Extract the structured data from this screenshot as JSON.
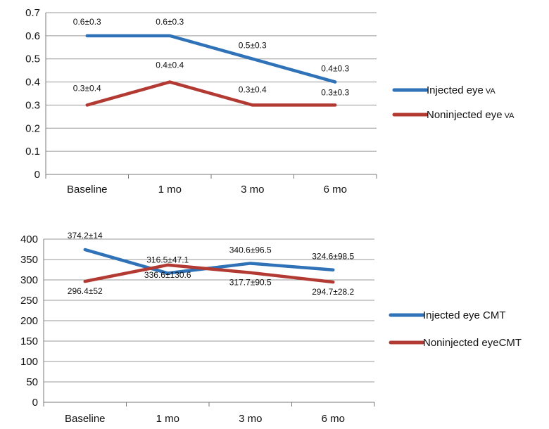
{
  "colors": {
    "injected": "#2f72b8",
    "noninjected": "#b23a33",
    "grid": "#9a9a9a",
    "axis": "#7a7a7a"
  },
  "chart_data": [
    {
      "type": "line",
      "title": "",
      "xlabel": "",
      "ylabel": "",
      "categories": [
        "Baseline",
        "1 mo",
        "3 mo",
        "6 mo"
      ],
      "ylim": [
        0,
        0.7
      ],
      "yticks": [
        "0",
        "0.1",
        "0.2",
        "0.3",
        "0.4",
        "0.5",
        "0.6",
        "0.7"
      ],
      "grid": true,
      "legend_position": "right",
      "series": [
        {
          "name": "Injected eye",
          "name_suffix": "VA",
          "color_key": "injected",
          "values": [
            0.6,
            0.6,
            0.5,
            0.4
          ],
          "labels": [
            "0.6±0.3",
            "0.6±0.3",
            "0.5±0.3",
            "0.4±0.3"
          ]
        },
        {
          "name": "Noninjected eye",
          "name_suffix": "VA",
          "color_key": "noninjected",
          "values": [
            0.3,
            0.4,
            0.3,
            0.3
          ],
          "labels": [
            "0.3±0.4",
            "0.4±0.4",
            "0.3±0.4",
            "0.3±0.3"
          ]
        }
      ]
    },
    {
      "type": "line",
      "title": "",
      "xlabel": "",
      "ylabel": "",
      "categories": [
        "Baseline",
        "1 mo",
        "3 mo",
        "6 mo"
      ],
      "ylim": [
        0,
        400
      ],
      "yticks": [
        "0",
        "50",
        "100",
        "150",
        "200",
        "250",
        "300",
        "350",
        "400"
      ],
      "grid": true,
      "legend_position": "right",
      "series": [
        {
          "name": "Injected eye CMT",
          "name_suffix": "",
          "color_key": "injected",
          "values": [
            374.2,
            316.5,
            340.6,
            324.6
          ],
          "labels": [
            "374.2±14",
            "316.5±47.1",
            "340.6±96.5",
            "324.6±98.5"
          ]
        },
        {
          "name": "Noninjected eyeCMT",
          "name_suffix": "",
          "color_key": "noninjected",
          "values": [
            296.4,
            336.6,
            317.7,
            294.7
          ],
          "labels": [
            "296.4±52",
            "336.6±130.6",
            "317.7±90.5",
            "294.7±28.2"
          ]
        }
      ]
    }
  ]
}
